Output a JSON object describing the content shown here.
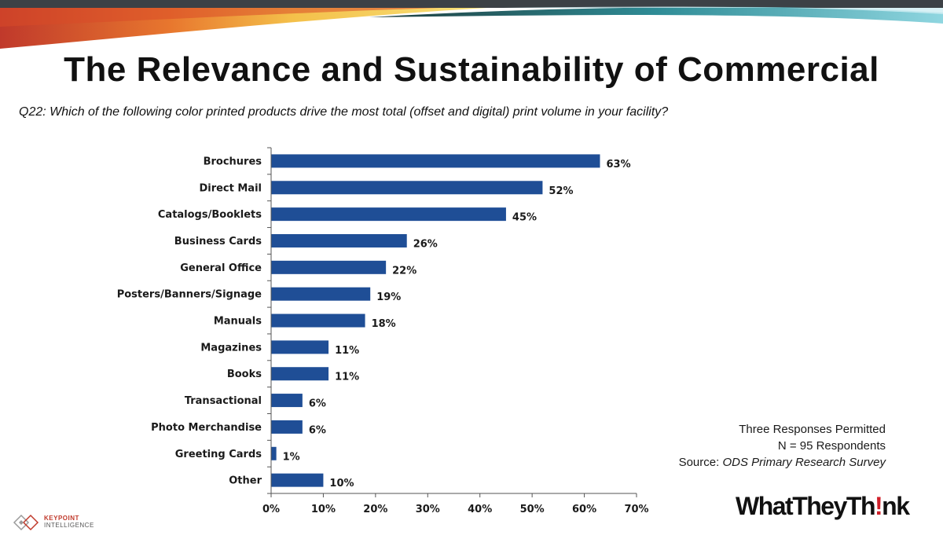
{
  "slide": {
    "title": "The Relevance and Sustainability of Commercial",
    "question": "Q22: Which of the following color printed products drive the most total (offset and digital) print volume in your facility?"
  },
  "notes": {
    "line1": "Three Responses Permitted",
    "line2": "N = 95 Respondents",
    "source_prefix": "Source: ",
    "source_name": "ODS Primary Research Survey"
  },
  "logos": {
    "keypoint_line1": "KEYPOINT",
    "keypoint_line2": "INTELLIGENCE",
    "wtt_before": "WhatTheyTh",
    "wtt_bang": "!",
    "wtt_after": "nk"
  },
  "colors": {
    "bar": "#1f4e96",
    "axis": "#555555",
    "band_red": "#c0392b",
    "band_teal": "#5fb8c4",
    "band_dark": "#3c4146"
  },
  "chart_data": {
    "type": "bar",
    "orientation": "horizontal",
    "categories": [
      "Brochures",
      "Direct Mail",
      "Catalogs/Booklets",
      "Business Cards",
      "General Office",
      "Posters/Banners/Signage",
      "Manuals",
      "Magazines",
      "Books",
      "Transactional",
      "Photo Merchandise",
      "Greeting Cards",
      "Other"
    ],
    "values": [
      63,
      52,
      45,
      26,
      22,
      19,
      18,
      11,
      11,
      6,
      6,
      1,
      10
    ],
    "data_labels": [
      "63%",
      "52%",
      "45%",
      "26%",
      "22%",
      "19%",
      "18%",
      "11%",
      "11%",
      "6%",
      "6%",
      "1%",
      "10%"
    ],
    "xlim": [
      0,
      70
    ],
    "xticks": [
      0,
      10,
      20,
      30,
      40,
      50,
      60,
      70
    ],
    "xtick_labels": [
      "0%",
      "10%",
      "20%",
      "30%",
      "40%",
      "50%",
      "60%",
      "70%"
    ],
    "grid": false,
    "legend": "none"
  }
}
